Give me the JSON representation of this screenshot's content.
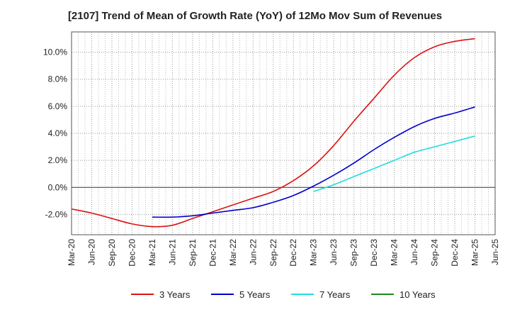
{
  "chart_data": {
    "type": "line",
    "title": "[2107]  Trend of Mean of Growth Rate (YoY) of 12Mo Mov Sum of Revenues",
    "xlabel": "",
    "ylabel": "",
    "x_ticks": [
      "Mar-20",
      "Jun-20",
      "Sep-20",
      "Dec-20",
      "Mar-21",
      "Jun-21",
      "Sep-21",
      "Dec-21",
      "Mar-22",
      "Jun-22",
      "Sep-22",
      "Dec-22",
      "Mar-23",
      "Jun-23",
      "Sep-23",
      "Dec-23",
      "Mar-24",
      "Jun-24",
      "Sep-24",
      "Dec-24",
      "Mar-25",
      "Jun-25"
    ],
    "y_ticks": [
      -2.0,
      0.0,
      2.0,
      4.0,
      6.0,
      8.0,
      10.0
    ],
    "y_tick_labels": [
      "-2.0%",
      "0.0%",
      "2.0%",
      "4.0%",
      "6.0%",
      "8.0%",
      "10.0%"
    ],
    "ylim": [
      -3.5,
      11.5
    ],
    "grid": true,
    "legend_position": "bottom",
    "series": [
      {
        "name": "3 Years",
        "color": "#dd1111",
        "x_start": 0,
        "values": [
          -1.6,
          -1.9,
          -2.3,
          -2.7,
          -2.9,
          -2.8,
          -2.3,
          -1.8,
          -1.3,
          -0.8,
          -0.3,
          0.5,
          1.6,
          3.1,
          4.9,
          6.6,
          8.3,
          9.6,
          10.4,
          10.8,
          11.0
        ]
      },
      {
        "name": "5 Years",
        "color": "#0000cc",
        "x_start": 4,
        "values": [
          -2.2,
          -2.2,
          -2.1,
          -1.9,
          -1.7,
          -1.5,
          -1.1,
          -0.6,
          0.1,
          0.9,
          1.8,
          2.8,
          3.7,
          4.5,
          5.1,
          5.5,
          5.95
        ]
      },
      {
        "name": "7 Years",
        "color": "#22dddd",
        "x_start": 12,
        "values": [
          -0.3,
          0.2,
          0.8,
          1.4,
          2.0,
          2.6,
          3.0,
          3.4,
          3.8
        ]
      },
      {
        "name": "10 Years",
        "color": "#228822",
        "x_start": 0,
        "values": []
      }
    ]
  }
}
